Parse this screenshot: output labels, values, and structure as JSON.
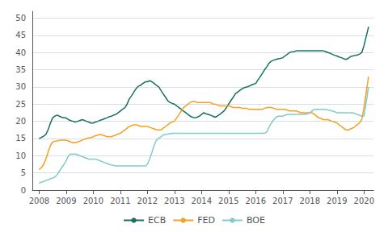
{
  "chart_data": {
    "type": "line",
    "x": [
      2008,
      2008.08,
      2008.17,
      2008.25,
      2008.33,
      2008.42,
      2008.5,
      2008.58,
      2008.67,
      2008.75,
      2008.83,
      2008.92,
      2009,
      2009.08,
      2009.17,
      2009.25,
      2009.33,
      2009.42,
      2009.5,
      2009.58,
      2009.67,
      2009.75,
      2009.83,
      2009.92,
      2010,
      2010.08,
      2010.17,
      2010.25,
      2010.33,
      2010.42,
      2010.5,
      2010.58,
      2010.67,
      2010.75,
      2010.83,
      2010.92,
      2011,
      2011.08,
      2011.17,
      2011.25,
      2011.33,
      2011.42,
      2011.5,
      2011.58,
      2011.67,
      2011.75,
      2011.83,
      2011.92,
      2012,
      2012.08,
      2012.17,
      2012.25,
      2012.33,
      2012.42,
      2012.5,
      2012.58,
      2012.67,
      2012.75,
      2012.83,
      2012.92,
      2013,
      2013.08,
      2013.17,
      2013.25,
      2013.33,
      2013.42,
      2013.5,
      2013.58,
      2013.67,
      2013.75,
      2013.83,
      2013.92,
      2014,
      2014.08,
      2014.17,
      2014.25,
      2014.33,
      2014.42,
      2014.5,
      2014.58,
      2014.67,
      2014.75,
      2014.83,
      2014.92,
      2015,
      2015.08,
      2015.17,
      2015.25,
      2015.33,
      2015.42,
      2015.5,
      2015.58,
      2015.67,
      2015.75,
      2015.83,
      2015.92,
      2016,
      2016.08,
      2016.17,
      2016.25,
      2016.33,
      2016.42,
      2016.5,
      2016.58,
      2016.67,
      2016.75,
      2016.83,
      2016.92,
      2017,
      2017.08,
      2017.17,
      2017.25,
      2017.33,
      2017.42,
      2017.5,
      2017.58,
      2017.67,
      2017.75,
      2017.83,
      2017.92,
      2018,
      2018.08,
      2018.17,
      2018.25,
      2018.33,
      2018.42,
      2018.5,
      2018.58,
      2018.67,
      2018.75,
      2018.83,
      2018.92,
      2019,
      2019.08,
      2019.17,
      2019.25,
      2019.33,
      2019.42,
      2019.5,
      2019.58,
      2019.67,
      2019.75,
      2019.83,
      2019.92,
      2020,
      2020.17
    ],
    "series": [
      {
        "name": "ECB",
        "color": "#1a7060",
        "values": [
          15.0,
          15.3,
          15.7,
          16.2,
          17.5,
          19.5,
          21.0,
          21.5,
          21.8,
          21.5,
          21.2,
          21.0,
          21.0,
          20.5,
          20.2,
          20.0,
          19.8,
          20.0,
          20.2,
          20.5,
          20.3,
          20.0,
          19.8,
          19.5,
          19.5,
          19.8,
          20.0,
          20.3,
          20.5,
          20.8,
          21.0,
          21.3,
          21.5,
          21.8,
          22.0,
          22.5,
          23.0,
          23.5,
          24.0,
          25.0,
          26.5,
          27.5,
          28.5,
          29.5,
          30.2,
          30.5,
          31.0,
          31.5,
          31.5,
          31.8,
          31.5,
          31.0,
          30.5,
          30.0,
          29.0,
          28.0,
          27.0,
          26.0,
          25.5,
          25.2,
          25.0,
          24.5,
          24.0,
          23.5,
          23.0,
          22.5,
          22.0,
          21.5,
          21.2,
          21.0,
          21.2,
          21.5,
          22.0,
          22.5,
          22.2,
          22.0,
          21.8,
          21.5,
          21.2,
          21.5,
          22.0,
          22.5,
          23.0,
          24.0,
          25.0,
          26.0,
          27.0,
          28.0,
          28.5,
          29.0,
          29.5,
          29.8,
          30.0,
          30.2,
          30.5,
          30.8,
          31.0,
          32.0,
          33.0,
          34.0,
          35.0,
          36.0,
          37.0,
          37.5,
          37.8,
          38.0,
          38.2,
          38.3,
          38.5,
          39.0,
          39.5,
          40.0,
          40.2,
          40.3,
          40.5,
          40.5,
          40.5,
          40.5,
          40.5,
          40.5,
          40.5,
          40.5,
          40.5,
          40.5,
          40.5,
          40.5,
          40.5,
          40.3,
          40.0,
          39.8,
          39.5,
          39.2,
          39.0,
          38.7,
          38.5,
          38.2,
          38.0,
          38.3,
          38.8,
          39.0,
          39.2,
          39.3,
          39.5,
          40.0,
          42.0,
          47.5
        ]
      },
      {
        "name": "FED",
        "color": "#f5a020",
        "values": [
          6.0,
          6.5,
          7.5,
          9.0,
          11.0,
          13.0,
          14.0,
          14.2,
          14.3,
          14.5,
          14.5,
          14.5,
          14.5,
          14.3,
          14.0,
          13.8,
          13.8,
          14.0,
          14.2,
          14.5,
          14.8,
          15.0,
          15.2,
          15.3,
          15.5,
          15.8,
          16.0,
          16.2,
          16.0,
          15.8,
          15.5,
          15.5,
          15.5,
          15.8,
          16.0,
          16.3,
          16.5,
          17.0,
          17.5,
          18.0,
          18.5,
          18.8,
          19.0,
          19.0,
          18.8,
          18.5,
          18.5,
          18.5,
          18.5,
          18.3,
          18.0,
          17.8,
          17.5,
          17.5,
          17.5,
          18.0,
          18.5,
          19.0,
          19.5,
          19.8,
          20.0,
          21.0,
          22.0,
          23.0,
          24.0,
          24.5,
          25.0,
          25.5,
          25.8,
          25.8,
          25.5,
          25.5,
          25.5,
          25.5,
          25.5,
          25.5,
          25.5,
          25.0,
          25.0,
          24.8,
          24.5,
          24.5,
          24.5,
          24.5,
          24.5,
          24.3,
          24.0,
          24.0,
          24.0,
          24.0,
          23.8,
          23.8,
          23.8,
          23.5,
          23.5,
          23.5,
          23.5,
          23.5,
          23.5,
          23.5,
          23.8,
          24.0,
          24.0,
          24.0,
          23.8,
          23.5,
          23.5,
          23.5,
          23.5,
          23.5,
          23.3,
          23.0,
          23.0,
          23.0,
          23.0,
          22.8,
          22.5,
          22.5,
          22.5,
          22.5,
          22.5,
          22.5,
          22.0,
          21.5,
          21.0,
          20.8,
          20.5,
          20.5,
          20.5,
          20.2,
          20.0,
          19.8,
          19.5,
          19.0,
          18.5,
          18.0,
          17.5,
          17.5,
          17.8,
          18.0,
          18.5,
          19.0,
          19.5,
          20.5,
          24.0,
          33.0
        ]
      },
      {
        "name": "BOE",
        "color": "#80ccc8",
        "values": [
          2.0,
          2.3,
          2.5,
          2.8,
          3.0,
          3.3,
          3.5,
          3.8,
          4.5,
          5.5,
          6.5,
          7.5,
          8.5,
          10.0,
          10.5,
          10.5,
          10.5,
          10.3,
          10.0,
          9.8,
          9.5,
          9.3,
          9.0,
          9.0,
          9.0,
          9.0,
          8.8,
          8.5,
          8.3,
          8.0,
          7.8,
          7.5,
          7.3,
          7.2,
          7.0,
          7.0,
          7.0,
          7.0,
          7.0,
          7.0,
          7.0,
          7.0,
          7.0,
          7.0,
          7.0,
          7.0,
          7.0,
          7.0,
          7.5,
          9.0,
          11.0,
          13.0,
          14.5,
          15.0,
          15.5,
          16.0,
          16.2,
          16.3,
          16.4,
          16.5,
          16.5,
          16.5,
          16.5,
          16.5,
          16.5,
          16.5,
          16.5,
          16.5,
          16.5,
          16.5,
          16.5,
          16.5,
          16.5,
          16.5,
          16.5,
          16.5,
          16.5,
          16.5,
          16.5,
          16.5,
          16.5,
          16.5,
          16.5,
          16.5,
          16.5,
          16.5,
          16.5,
          16.5,
          16.5,
          16.5,
          16.5,
          16.5,
          16.5,
          16.5,
          16.5,
          16.5,
          16.5,
          16.5,
          16.5,
          16.5,
          16.5,
          17.0,
          18.5,
          19.5,
          20.5,
          21.2,
          21.5,
          21.5,
          21.5,
          21.8,
          22.0,
          22.0,
          22.0,
          22.0,
          22.0,
          22.0,
          22.0,
          22.0,
          22.0,
          22.2,
          22.5,
          23.0,
          23.5,
          23.5,
          23.5,
          23.5,
          23.5,
          23.5,
          23.3,
          23.2,
          23.0,
          22.8,
          22.5,
          22.5,
          22.5,
          22.5,
          22.5,
          22.5,
          22.5,
          22.5,
          22.3,
          22.0,
          21.8,
          21.5,
          21.5,
          30.0
        ]
      }
    ],
    "xlim": [
      2007.75,
      2020.35
    ],
    "xticks": [
      2008,
      2009,
      2010,
      2011,
      2012,
      2013,
      2014,
      2015,
      2016,
      2017,
      2018,
      2019,
      2020
    ],
    "ylim": [
      0,
      52
    ],
    "yticks": [
      0,
      5,
      10,
      15,
      20,
      25,
      30,
      35,
      40,
      45,
      50
    ],
    "grid": true,
    "legend": "bottom"
  }
}
